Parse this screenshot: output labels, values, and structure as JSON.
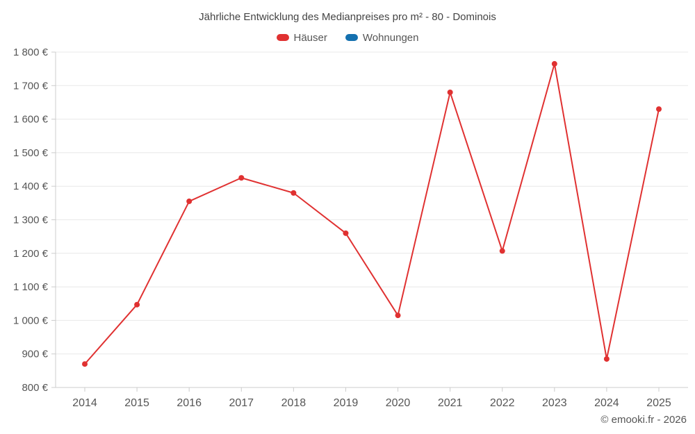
{
  "title": "Jährliche Entwicklung des Medianpreises pro m² - 80 - Dominois",
  "legend": [
    {
      "label": "Häuser",
      "color": "#e03131"
    },
    {
      "label": "Wohnungen",
      "color": "#1470af"
    }
  ],
  "footer": "© emooki.fr - 2026",
  "chart_data": {
    "type": "line",
    "title": "Jährliche Entwicklung des Medianpreises pro m² - 80 - Dominois",
    "categories": [
      "2014",
      "2015",
      "2016",
      "2017",
      "2018",
      "2019",
      "2020",
      "2021",
      "2022",
      "2023",
      "2024",
      "2025"
    ],
    "series": [
      {
        "name": "Häuser",
        "color": "#e03131",
        "values": [
          870,
          1047,
          1355,
          1425,
          1380,
          1260,
          1015,
          1680,
          1207,
          1765,
          885,
          1630
        ]
      },
      {
        "name": "Wohnungen",
        "color": "#1470af",
        "values": []
      }
    ],
    "xlabel": "",
    "ylabel": "",
    "ylim": [
      800,
      1800
    ],
    "ytick_step": 100,
    "ytick_suffix": " €",
    "grid": true,
    "legend_position": "top"
  }
}
